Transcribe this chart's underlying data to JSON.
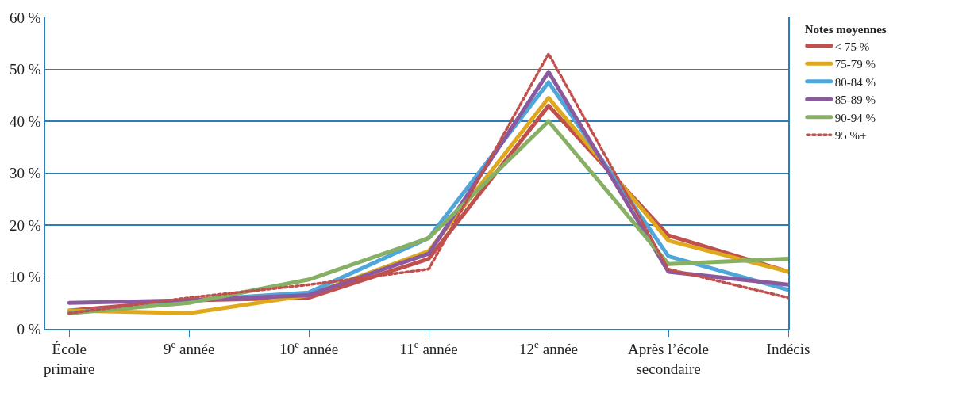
{
  "chart_data": {
    "type": "line",
    "categories": [
      "École primaire",
      "9$^{e}$ année",
      "10$^{e}$ année",
      "11$^{e}$ année",
      "12$^{e}$ année",
      "Après l’école secondaire",
      "Indécis"
    ],
    "legend_title": "Notes moyennes",
    "series": [
      {
        "name": "< 75 %",
        "color": "#c0504d",
        "values": [
          3.5,
          5.5,
          6,
          13.5,
          43,
          18,
          11
        ]
      },
      {
        "name": "75-79 %",
        "color": "#e0a81c",
        "values": [
          3.5,
          3,
          6.5,
          15,
          44.5,
          17,
          11
        ]
      },
      {
        "name": "80-84 %",
        "color": "#4fa6da",
        "values": [
          3,
          5.5,
          7,
          17.5,
          47.5,
          14,
          7.5
        ]
      },
      {
        "name": "85-89 %",
        "color": "#8b5a9e",
        "values": [
          5,
          5.5,
          6.5,
          14.5,
          49.5,
          11,
          8.5
        ]
      },
      {
        "name": "90-94 %",
        "color": "#87b065",
        "values": [
          3,
          5,
          9.5,
          17.5,
          40,
          12.5,
          13.5
        ]
      },
      {
        "name": "95 %+",
        "color": "#c0504d",
        "line_style": "dotted",
        "values": [
          3,
          6,
          8.5,
          11.5,
          53,
          11.5,
          6
        ]
      }
    ],
    "ylim": [
      0,
      60
    ],
    "yticks": [
      {
        "value": 0,
        "label": "0 %"
      },
      {
        "value": 10,
        "label": "10 %"
      },
      {
        "value": 20,
        "label": "20 %"
      },
      {
        "value": 30,
        "label": "30 %"
      },
      {
        "value": 40,
        "label": "40 %"
      },
      {
        "value": 50,
        "label": "50 %"
      },
      {
        "value": 60,
        "label": "60 %"
      }
    ],
    "grid": "y",
    "legend": "right",
    "marker": "none",
    "line_style": "solid"
  }
}
